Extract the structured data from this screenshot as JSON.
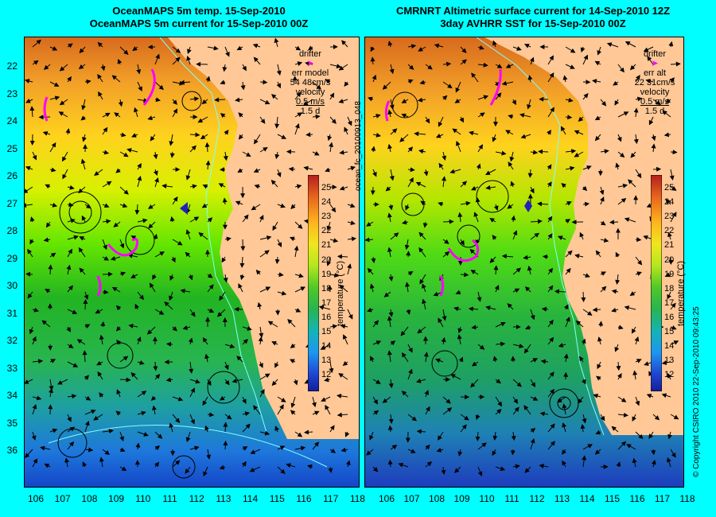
{
  "left_panel": {
    "title_line1": "OceanMAPS 5m temp. 15-Sep-2010",
    "title_line2": "OceanMAPS 5m current for 15-Sep-2010 00Z",
    "drifter_label": "drifter",
    "err_label": "err model",
    "err_value": "54 48cm/s",
    "velocity_label": "velocity",
    "velocity_scale": "0.5 m/s",
    "duration": "1.5 d"
  },
  "right_panel": {
    "title_line1": "CMRNRT Altimetric surface current for 14-Sep-2010 12Z",
    "title_line2": "3day AVHRR SST for 15-Sep-2010 00Z",
    "drifter_label": "drifter",
    "err_label": "err alt",
    "err_value": "22 31cm/s",
    "velocity_label": "velocity",
    "velocity_scale": "0.5 m/s",
    "duration": "1.5 d"
  },
  "colorbar": {
    "title": "temperature (°C)",
    "ticks": [
      "25",
      "24",
      "23",
      "22",
      "21",
      "20",
      "19",
      "18",
      "17",
      "16",
      "15",
      "14",
      "13",
      "12"
    ]
  },
  "lat_ticks": [
    "22",
    "23",
    "24",
    "25",
    "26",
    "27",
    "28",
    "29",
    "30",
    "31",
    "32",
    "33",
    "34",
    "35",
    "36"
  ],
  "lon_ticks": [
    "106",
    "107",
    "108",
    "109",
    "110",
    "111",
    "112",
    "113",
    "114",
    "115",
    "116",
    "117",
    "118"
  ],
  "product_id": "ocean_fc_20100913_048",
  "copyright": "© Copyright CSIRO 2010 22-Sep-2010 09:43:25",
  "colors": {
    "background": "#00ffff",
    "land": "#ffc896",
    "drifter": "#ff00ff"
  }
}
